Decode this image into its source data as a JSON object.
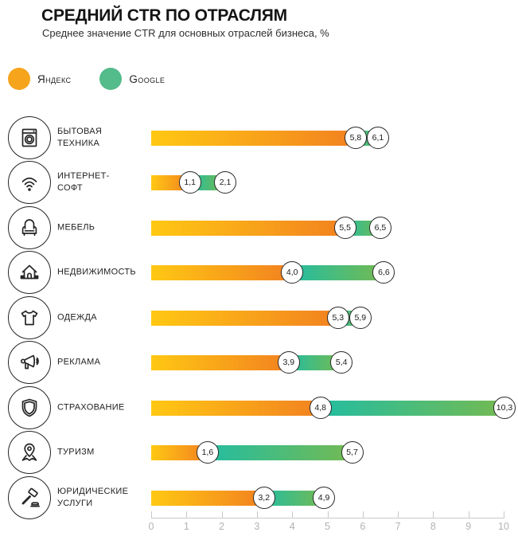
{
  "header": {
    "title": "СРЕДНИЙ CTR ПО ОТРАСЛЯМ",
    "subtitle": "Среднее значение CTR для основных отраслей бизнеса, %"
  },
  "legend": [
    {
      "label": "Яндекс",
      "color": "#F6A41B"
    },
    {
      "label": "Google",
      "color": "#54BB8B"
    }
  ],
  "colors": {
    "yandex_gradient_start": "#FFC813",
    "yandex_gradient_end": "#F28120",
    "google_gradient_start": "#24BDA0",
    "google_gradient_end": "#74BA52",
    "axis": "#c9c9c9",
    "tick_label": "#b3b3b3"
  },
  "chart_data": {
    "type": "bar",
    "orientation": "horizontal",
    "title": "СРЕДНИЙ CTR ПО ОТРАСЛЯМ",
    "subtitle": "Среднее значение CTR для основных отраслей бизнеса, %",
    "value_unit": "%",
    "decimal_separator": ",",
    "xlim": [
      0,
      10
    ],
    "x_ticks": [
      0,
      1,
      2,
      3,
      4,
      5,
      6,
      7,
      8,
      9,
      10
    ],
    "grid": false,
    "legend_position": "top-left",
    "categories": [
      "БЫТОВАЯ ТЕХНИКА",
      "ИНТЕРНЕТ-СОФТ",
      "МЕБЕЛЬ",
      "НЕДВИЖИМОСТЬ",
      "ОДЕЖДА",
      "РЕКЛАМА",
      "СТРАХОВАНИЕ",
      "ТУРИЗМ",
      "ЮРИДИЧЕСКИЕ УСЛУГИ"
    ],
    "series": [
      {
        "name": "Яндекс",
        "values": [
          5.8,
          1.1,
          5.5,
          4.0,
          5.3,
          3.9,
          4.8,
          1.6,
          3.2
        ]
      },
      {
        "name": "Google",
        "values": [
          6.1,
          2.1,
          6.5,
          6.6,
          5.9,
          5.4,
          10.3,
          5.7,
          4.9
        ]
      }
    ],
    "rows": [
      {
        "label_lines": [
          "БЫТОВАЯ",
          "ТЕХНИКА"
        ],
        "icon": "washer-icon",
        "yandex": 5.8,
        "google": 6.1
      },
      {
        "label_lines": [
          "ИНТЕРНЕТ-",
          "СОФТ"
        ],
        "icon": "wifi-icon",
        "yandex": 1.1,
        "google": 2.1
      },
      {
        "label_lines": [
          "МЕБЕЛЬ"
        ],
        "icon": "armchair-icon",
        "yandex": 5.5,
        "google": 6.5
      },
      {
        "label_lines": [
          "НЕДВИЖИМОСТЬ"
        ],
        "icon": "house-icon",
        "yandex": 4.0,
        "google": 6.6
      },
      {
        "label_lines": [
          "ОДЕЖДА"
        ],
        "icon": "tshirt-icon",
        "yandex": 5.3,
        "google": 5.9
      },
      {
        "label_lines": [
          "РЕКЛАМА"
        ],
        "icon": "megaphone-icon",
        "yandex": 3.9,
        "google": 5.4
      },
      {
        "label_lines": [
          "СТРАХОВАНИЕ"
        ],
        "icon": "shield-icon",
        "yandex": 4.8,
        "google": 10.3
      },
      {
        "label_lines": [
          "ТУРИЗМ"
        ],
        "icon": "map-pin-icon",
        "yandex": 1.6,
        "google": 5.7
      },
      {
        "label_lines": [
          "ЮРИДИЧЕСКИЕ",
          "УСЛУГИ"
        ],
        "icon": "gavel-icon",
        "yandex": 3.2,
        "google": 4.9
      }
    ]
  }
}
